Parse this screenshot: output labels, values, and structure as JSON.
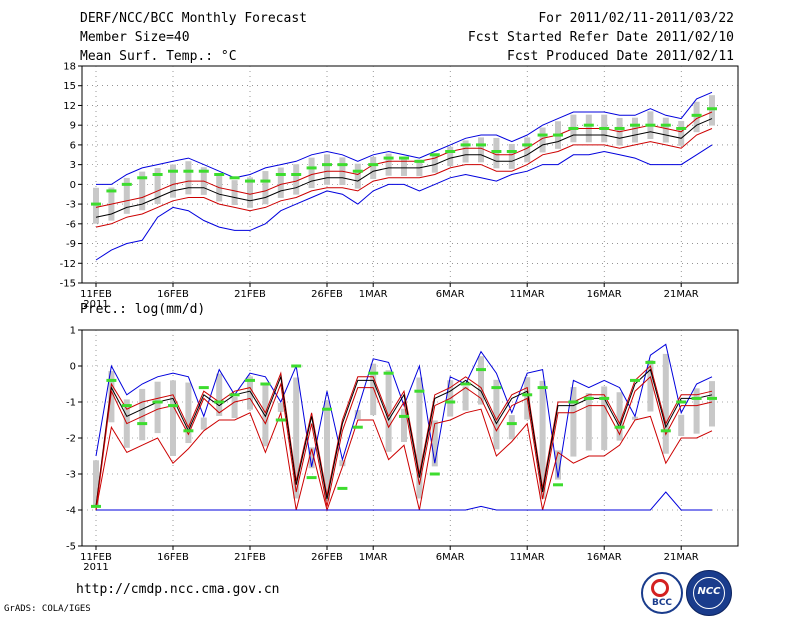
{
  "header": {
    "title": "DERF/NCC/BCC Monthly Forecast",
    "member_size": "Member Size=40",
    "variable": "Mean Surf. Temp.: °C",
    "period": "For 2011/02/11-2011/03/22",
    "started": "Fcst Started Refer Date 2011/02/10",
    "produced": "Fcst Produced Date 2011/02/11"
  },
  "footer": {
    "url": "http://cmdp.ncc.cma.gov.cn",
    "credit": "GrADS: COLA/IGES",
    "logo_left_text": "BCC",
    "logo_right_text": "NCC"
  },
  "colors": {
    "box": "#c8c8c8",
    "median": "#3ddc2e",
    "mean": "#000000",
    "envelope": "#cc0000",
    "extremes": "#0000dd",
    "grid": "#555555"
  },
  "chart_data": [
    {
      "type": "line",
      "title": "Mean Surf. Temp.: °C",
      "ylim": [
        -15,
        18
      ],
      "yticks": [
        -15,
        -12,
        -9,
        -6,
        -3,
        0,
        3,
        6,
        9,
        12,
        15,
        18
      ],
      "xticks": [
        {
          "label": "11FEB",
          "day": 0
        },
        {
          "label": "16FEB",
          "day": 5
        },
        {
          "label": "21FEB",
          "day": 10
        },
        {
          "label": "26FEB",
          "day": 15
        },
        {
          "label": "1MAR",
          "day": 18
        },
        {
          "label": "6MAR",
          "day": 23
        },
        {
          "label": "11MAR",
          "day": 28
        },
        {
          "label": "16MAR",
          "day": 33
        },
        {
          "label": "21MAR",
          "day": 38
        }
      ],
      "year_label": "2011",
      "days": 40,
      "series": [
        {
          "name": "max",
          "color": "blue",
          "values": [
            0,
            0,
            1.5,
            2.5,
            3,
            3.5,
            4,
            3,
            2,
            1,
            1.5,
            2.5,
            3,
            3.5,
            4.5,
            5,
            4.5,
            3.5,
            4.5,
            5,
            4.5,
            4,
            5,
            6,
            7,
            7.5,
            7.5,
            6.5,
            7.5,
            9,
            10,
            11,
            11,
            11,
            10.5,
            10.5,
            11.5,
            10.5,
            10,
            13,
            14
          ]
        },
        {
          "name": "mean+",
          "color": "red",
          "values": [
            -3.5,
            -3,
            -2.5,
            -2,
            -1,
            0,
            0.5,
            0.5,
            -0.5,
            -1,
            -1.5,
            -1,
            0,
            0.5,
            1.5,
            2,
            2,
            1.5,
            3,
            3.5,
            3.5,
            3.5,
            4,
            5,
            5.5,
            5.5,
            4.5,
            4.5,
            5.5,
            7,
            7.5,
            8.5,
            8.5,
            8.5,
            8,
            8.5,
            9,
            8.5,
            8,
            10,
            11
          ]
        },
        {
          "name": "mean",
          "color": "black",
          "values": [
            -5,
            -4.5,
            -3.5,
            -3,
            -2,
            -1,
            -0.5,
            -0.5,
            -1.5,
            -2,
            -2.5,
            -2,
            -1,
            -0.5,
            0.5,
            1,
            1,
            0.5,
            2,
            2.5,
            2.5,
            2.5,
            3,
            4,
            4.5,
            4.5,
            3.5,
            3.5,
            4.5,
            6,
            6.5,
            7.5,
            7.5,
            7.5,
            7,
            7.5,
            8,
            7.5,
            7,
            9,
            10
          ]
        },
        {
          "name": "mean-",
          "color": "red",
          "values": [
            -6.5,
            -6,
            -5,
            -4.5,
            -3.5,
            -2.5,
            -2,
            -2,
            -3,
            -3.5,
            -4,
            -3.5,
            -2.5,
            -2,
            -1,
            -0.5,
            -0.5,
            -1,
            0.5,
            1,
            1,
            1,
            1.5,
            2.5,
            3,
            3,
            2,
            2,
            3,
            4.5,
            5,
            6,
            6,
            6,
            5.5,
            6,
            6.5,
            6,
            5.5,
            7.5,
            8.5
          ]
        },
        {
          "name": "min",
          "color": "blue",
          "values": [
            -11.5,
            -10,
            -9,
            -8.5,
            -5,
            -3.5,
            -4,
            -5.5,
            -6.5,
            -7,
            -7,
            -6,
            -4,
            -3,
            -2,
            -1,
            -1.5,
            -3,
            -1,
            0,
            0,
            -1,
            0,
            1,
            1.5,
            1,
            0.5,
            1.5,
            2,
            3,
            3,
            4.5,
            4.5,
            5,
            4.5,
            4,
            3,
            3,
            3,
            4.5,
            6
          ]
        },
        {
          "name": "median",
          "color": "green",
          "values": [
            -3,
            -1,
            0,
            1,
            1.5,
            2,
            2,
            2,
            1.5,
            1,
            0.5,
            0.5,
            1.5,
            1.5,
            2.5,
            3,
            3,
            2,
            3,
            4,
            4,
            3.5,
            4.5,
            5,
            6,
            6,
            5,
            5,
            6,
            7.5,
            7.5,
            8.5,
            9,
            8.5,
            8.5,
            9,
            9,
            9,
            8.5,
            10.5,
            11.5
          ]
        }
      ]
    },
    {
      "type": "line",
      "title": "Prec.: log(mm/d)",
      "ylim": [
        -5,
        1
      ],
      "yticks": [
        -5,
        -4,
        -3,
        -2,
        -1,
        0,
        1
      ],
      "xticks": [
        {
          "label": "11FEB",
          "day": 0
        },
        {
          "label": "16FEB",
          "day": 5
        },
        {
          "label": "21FEB",
          "day": 10
        },
        {
          "label": "26FEB",
          "day": 15
        },
        {
          "label": "1MAR",
          "day": 18
        },
        {
          "label": "6MAR",
          "day": 23
        },
        {
          "label": "11MAR",
          "day": 28
        },
        {
          "label": "16MAR",
          "day": 33
        },
        {
          "label": "21MAR",
          "day": 38
        }
      ],
      "year_label": "2011",
      "days": 40,
      "series": [
        {
          "name": "max",
          "color": "blue",
          "values": [
            -2.5,
            0,
            -0.8,
            -0.5,
            -0.3,
            -0.2,
            -0.3,
            -1.4,
            -0.1,
            -0.8,
            -0.2,
            -0.3,
            -1,
            0,
            -2.8,
            -0.7,
            -2.6,
            -1.2,
            0.2,
            0.1,
            -1.1,
            0,
            -2.7,
            -0.3,
            -0.5,
            0.4,
            -0.2,
            -1.3,
            -0.2,
            -0.1,
            -3.1,
            -0.4,
            -0.6,
            -0.4,
            -0.6,
            -1.4,
            0.3,
            0.6,
            -1.3,
            -0.5,
            -0.3
          ]
        },
        {
          "name": "mean+",
          "color": "red",
          "values": [
            -3.9,
            -0.5,
            -1.2,
            -1,
            -0.9,
            -0.8,
            -1.7,
            -0.7,
            -1,
            -0.7,
            -0.6,
            -1.3,
            -0.2,
            -3.2,
            -1.3,
            -3.6,
            -1.5,
            -0.3,
            -0.3,
            -1.4,
            -0.7,
            -3,
            -0.8,
            -0.6,
            -0.3,
            -0.6,
            -1.5,
            -0.8,
            -0.6,
            -3.4,
            -1,
            -1,
            -0.8,
            -0.8,
            -1.6,
            -0.4,
            0,
            -1.6,
            -0.8,
            -0.8,
            -0.7
          ]
        },
        {
          "name": "mean",
          "color": "black",
          "values": [
            -3.9,
            -0.6,
            -1.4,
            -1.2,
            -1,
            -0.9,
            -1.8,
            -0.8,
            -1.1,
            -0.8,
            -0.7,
            -1.4,
            -0.3,
            -3.3,
            -1.4,
            -3.7,
            -1.6,
            -0.4,
            -0.4,
            -1.5,
            -0.8,
            -3.1,
            -0.9,
            -0.7,
            -0.4,
            -0.7,
            -1.6,
            -0.9,
            -0.7,
            -3.5,
            -1.1,
            -1.1,
            -0.9,
            -0.9,
            -1.7,
            -0.5,
            -0.1,
            -1.7,
            -0.9,
            -0.9,
            -0.8
          ]
        },
        {
          "name": "mean-",
          "color": "red",
          "values": [
            -4,
            -0.7,
            -1.6,
            -1.4,
            -1.2,
            -1.1,
            -1.9,
            -0.9,
            -1.3,
            -1,
            -0.9,
            -1.6,
            -0.5,
            -3.5,
            -1.6,
            -3.9,
            -1.8,
            -0.6,
            -0.6,
            -1.7,
            -1,
            -3.3,
            -1.1,
            -0.9,
            -0.6,
            -0.9,
            -1.8,
            -1.1,
            -0.9,
            -3.7,
            -1.3,
            -1.3,
            -1.1,
            -1.1,
            -1.9,
            -0.7,
            -0.3,
            -1.9,
            -1.1,
            -1.1,
            -1
          ]
        },
        {
          "name": "lower",
          "color": "red",
          "values": [
            -4,
            -1.7,
            -2.4,
            -2.2,
            -2,
            -2.7,
            -2.3,
            -1.8,
            -1.5,
            -1.5,
            -1.3,
            -2.4,
            -1.3,
            -4,
            -2.3,
            -4,
            -2.8,
            -1.5,
            -1.5,
            -2.6,
            -2.2,
            -4,
            -1.6,
            -1.5,
            -1.3,
            -1.2,
            -2.5,
            -2.1,
            -1.6,
            -4,
            -2.4,
            -2.7,
            -2.5,
            -2.5,
            -2.2,
            -1.5,
            -1.4,
            -2.7,
            -2,
            -2,
            -1.8
          ]
        },
        {
          "name": "min",
          "color": "blue",
          "values": [
            -4,
            -4,
            -4,
            -4,
            -4,
            -4,
            -4,
            -4,
            -4,
            -4,
            -4,
            -4,
            -4,
            -4,
            -4,
            -4,
            -4,
            -4,
            -4,
            -4,
            -4,
            -4,
            -4,
            -4,
            -4,
            -3.9,
            -4,
            -4,
            -4,
            -4,
            -4,
            -4,
            -4,
            -4,
            -4,
            -4,
            -4,
            -3.5,
            -4,
            -4,
            -4
          ]
        },
        {
          "name": "median",
          "color": "green",
          "values": [
            -3.9,
            -0.4,
            -1.1,
            -1.6,
            -1,
            -1.1,
            -1.8,
            -0.6,
            -1,
            -0.8,
            -0.4,
            -0.5,
            -1.5,
            0,
            -3.1,
            -1.2,
            -3.4,
            -1.7,
            -0.2,
            -0.2,
            -1.4,
            -0.7,
            -3,
            -1,
            -0.5,
            -0.1,
            -0.6,
            -1.6,
            -0.8,
            -0.6,
            -3.3,
            -1,
            -0.9,
            -0.9,
            -1.7,
            -0.4,
            0.1,
            -1.8,
            -1,
            -0.9,
            -0.9
          ]
        }
      ]
    }
  ]
}
